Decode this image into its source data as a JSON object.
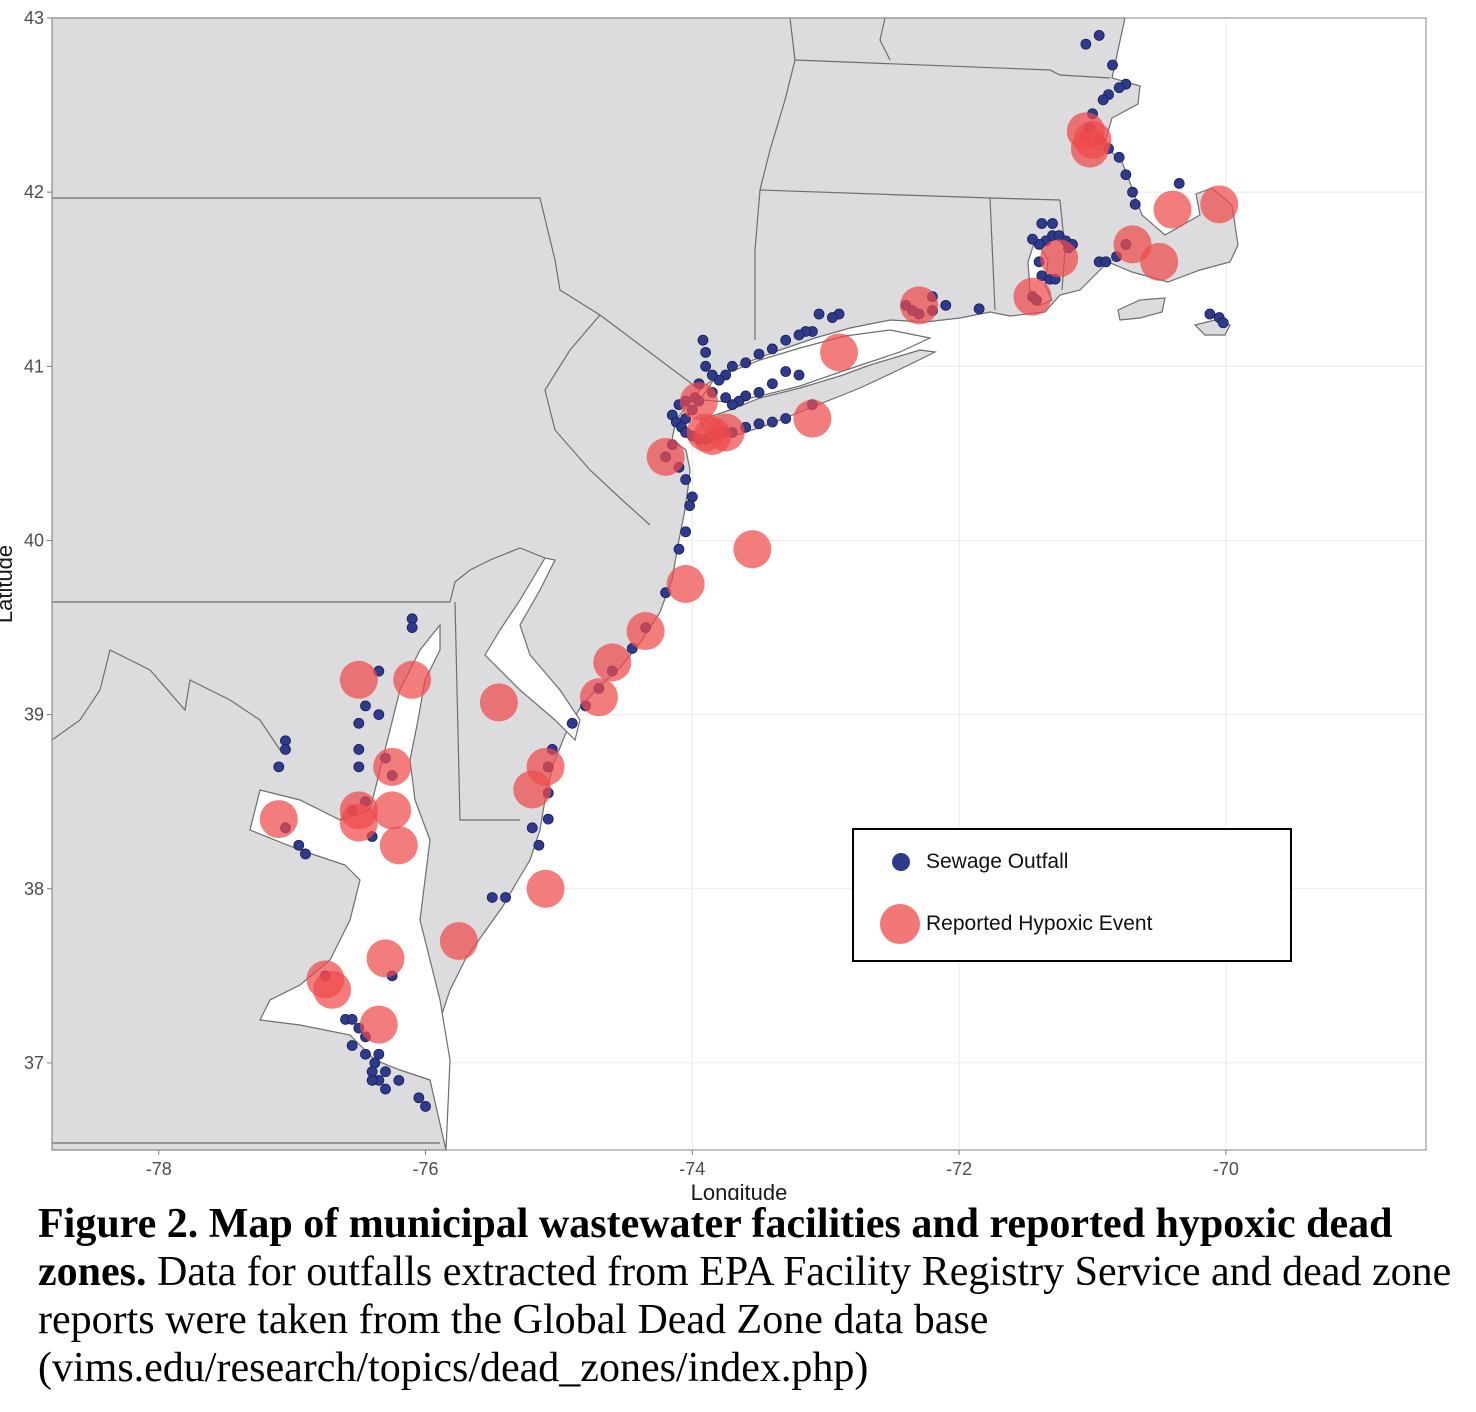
{
  "chart_data": {
    "type": "map",
    "xlabel": "Longitude",
    "ylabel": "Latitude",
    "xlim": [
      -78.8,
      -68.5
    ],
    "ylim": [
      36.5,
      43.0
    ],
    "x_ticks": [
      -78,
      -76,
      -74,
      -72,
      -70
    ],
    "y_ticks": [
      37,
      38,
      39,
      40,
      41,
      42,
      43
    ],
    "x_tick_labels": [
      "-78",
      "-76",
      "-74",
      "-72",
      "-70"
    ],
    "y_tick_labels": [
      "37",
      "38",
      "39",
      "40",
      "41",
      "42",
      "43"
    ],
    "grid": true,
    "legend_position": "lower-right",
    "colors": {
      "land": "#dcdcde",
      "border": "#6e6e6e",
      "outfall": "#2e3a8c",
      "hypoxic": "#ee4b4b"
    },
    "series": [
      {
        "name": "Sewage Outfall",
        "points": [
          [
            -71.05,
            42.85
          ],
          [
            -70.95,
            42.9
          ],
          [
            -70.85,
            42.73
          ],
          [
            -70.75,
            42.62
          ],
          [
            -70.8,
            42.6
          ],
          [
            -70.88,
            42.56
          ],
          [
            -70.92,
            42.53
          ],
          [
            -71.0,
            42.45
          ],
          [
            -71.02,
            42.37
          ],
          [
            -71.05,
            42.33
          ],
          [
            -70.95,
            42.3
          ],
          [
            -70.88,
            42.25
          ],
          [
            -70.8,
            42.2
          ],
          [
            -70.75,
            42.1
          ],
          [
            -70.7,
            42.0
          ],
          [
            -70.68,
            41.93
          ],
          [
            -70.35,
            42.05
          ],
          [
            -71.3,
            41.75
          ],
          [
            -71.35,
            41.72
          ],
          [
            -71.4,
            41.7
          ],
          [
            -71.45,
            41.73
          ],
          [
            -71.38,
            41.82
          ],
          [
            -71.3,
            41.82
          ],
          [
            -71.25,
            41.75
          ],
          [
            -71.2,
            41.72
          ],
          [
            -71.15,
            41.7
          ],
          [
            -71.18,
            41.68
          ],
          [
            -71.4,
            41.6
          ],
          [
            -71.38,
            41.52
          ],
          [
            -71.32,
            41.5
          ],
          [
            -71.28,
            41.5
          ],
          [
            -71.45,
            41.4
          ],
          [
            -71.42,
            41.38
          ],
          [
            -70.95,
            41.6
          ],
          [
            -70.9,
            41.6
          ],
          [
            -70.82,
            41.63
          ],
          [
            -70.75,
            41.7
          ],
          [
            -70.12,
            41.3
          ],
          [
            -70.05,
            41.28
          ],
          [
            -70.02,
            41.25
          ],
          [
            -72.1,
            41.35
          ],
          [
            -72.2,
            41.32
          ],
          [
            -72.3,
            41.3
          ],
          [
            -72.35,
            41.32
          ],
          [
            -72.4,
            41.35
          ],
          [
            -72.2,
            41.4
          ],
          [
            -71.85,
            41.33
          ],
          [
            -72.9,
            41.3
          ],
          [
            -72.95,
            41.28
          ],
          [
            -73.05,
            41.3
          ],
          [
            -73.1,
            41.2
          ],
          [
            -73.15,
            41.2
          ],
          [
            -73.2,
            41.18
          ],
          [
            -73.3,
            41.15
          ],
          [
            -73.4,
            41.1
          ],
          [
            -73.5,
            41.07
          ],
          [
            -73.6,
            41.02
          ],
          [
            -73.7,
            41.0
          ],
          [
            -73.75,
            40.95
          ],
          [
            -73.8,
            40.92
          ],
          [
            -73.85,
            40.95
          ],
          [
            -73.9,
            41.0
          ],
          [
            -73.9,
            41.08
          ],
          [
            -73.92,
            41.15
          ],
          [
            -73.95,
            40.9
          ],
          [
            -73.98,
            40.82
          ],
          [
            -74.05,
            40.8
          ],
          [
            -74.1,
            40.78
          ],
          [
            -74.15,
            40.72
          ],
          [
            -74.12,
            40.68
          ],
          [
            -74.08,
            40.65
          ],
          [
            -74.05,
            40.62
          ],
          [
            -74.0,
            40.6
          ],
          [
            -73.95,
            40.58
          ],
          [
            -73.9,
            40.58
          ],
          [
            -73.85,
            40.6
          ],
          [
            -73.8,
            40.62
          ],
          [
            -73.75,
            40.62
          ],
          [
            -73.7,
            40.62
          ],
          [
            -73.6,
            40.65
          ],
          [
            -73.5,
            40.67
          ],
          [
            -73.4,
            40.68
          ],
          [
            -73.3,
            40.7
          ],
          [
            -73.1,
            40.78
          ],
          [
            -73.2,
            40.95
          ],
          [
            -73.3,
            40.97
          ],
          [
            -73.4,
            40.9
          ],
          [
            -73.5,
            40.85
          ],
          [
            -73.6,
            40.83
          ],
          [
            -73.65,
            40.8
          ],
          [
            -73.7,
            40.78
          ],
          [
            -73.75,
            40.82
          ],
          [
            -73.85,
            40.85
          ],
          [
            -73.95,
            40.8
          ],
          [
            -74.0,
            40.75
          ],
          [
            -74.05,
            40.7
          ],
          [
            -74.15,
            40.55
          ],
          [
            -74.2,
            40.48
          ],
          [
            -74.1,
            40.42
          ],
          [
            -74.05,
            40.35
          ],
          [
            -74.0,
            40.25
          ],
          [
            -74.02,
            40.2
          ],
          [
            -74.05,
            40.05
          ],
          [
            -74.1,
            39.95
          ],
          [
            -74.2,
            39.7
          ],
          [
            -74.35,
            39.5
          ],
          [
            -74.45,
            39.38
          ],
          [
            -74.6,
            39.25
          ],
          [
            -74.7,
            39.15
          ],
          [
            -74.8,
            39.05
          ],
          [
            -74.9,
            38.95
          ],
          [
            -75.05,
            38.8
          ],
          [
            -75.08,
            38.7
          ],
          [
            -75.08,
            38.55
          ],
          [
            -75.08,
            38.4
          ],
          [
            -75.15,
            38.25
          ],
          [
            -75.2,
            38.35
          ],
          [
            -75.4,
            37.95
          ],
          [
            -75.5,
            37.95
          ],
          [
            -76.1,
            39.55
          ],
          [
            -76.1,
            39.5
          ],
          [
            -76.35,
            39.25
          ],
          [
            -76.45,
            39.05
          ],
          [
            -76.35,
            39.0
          ],
          [
            -76.5,
            38.95
          ],
          [
            -76.5,
            38.8
          ],
          [
            -76.5,
            38.7
          ],
          [
            -76.3,
            38.75
          ],
          [
            -76.25,
            38.65
          ],
          [
            -76.4,
            38.3
          ],
          [
            -76.45,
            38.5
          ],
          [
            -76.55,
            38.45
          ],
          [
            -77.05,
            38.85
          ],
          [
            -77.05,
            38.8
          ],
          [
            -77.1,
            38.7
          ],
          [
            -77.05,
            38.35
          ],
          [
            -76.95,
            38.25
          ],
          [
            -76.9,
            38.2
          ],
          [
            -76.25,
            37.5
          ],
          [
            -76.75,
            37.5
          ],
          [
            -76.6,
            37.25
          ],
          [
            -76.55,
            37.25
          ],
          [
            -76.5,
            37.2
          ],
          [
            -76.45,
            37.15
          ],
          [
            -76.55,
            37.1
          ],
          [
            -76.45,
            37.05
          ],
          [
            -76.35,
            37.05
          ],
          [
            -76.38,
            37.0
          ],
          [
            -76.4,
            36.95
          ],
          [
            -76.35,
            36.9
          ],
          [
            -76.3,
            36.85
          ],
          [
            -76.4,
            36.9
          ],
          [
            -76.2,
            36.9
          ],
          [
            -76.05,
            36.8
          ],
          [
            -76.0,
            36.75
          ],
          [
            -76.3,
            36.95
          ]
        ]
      },
      {
        "name": "Reported Hypoxic Event",
        "points": [
          [
            -71.05,
            42.35
          ],
          [
            -71.0,
            42.3
          ],
          [
            -71.02,
            42.25
          ],
          [
            -70.4,
            41.9
          ],
          [
            -70.05,
            41.93
          ],
          [
            -70.7,
            41.7
          ],
          [
            -70.5,
            41.6
          ],
          [
            -71.25,
            41.62
          ],
          [
            -71.45,
            41.4
          ],
          [
            -72.3,
            41.35
          ],
          [
            -72.9,
            41.08
          ],
          [
            -73.1,
            40.7
          ],
          [
            -73.95,
            40.8
          ],
          [
            -73.9,
            40.62
          ],
          [
            -73.75,
            40.62
          ],
          [
            -73.85,
            40.6
          ],
          [
            -74.2,
            40.48
          ],
          [
            -73.55,
            39.95
          ],
          [
            -74.05,
            39.75
          ],
          [
            -74.35,
            39.48
          ],
          [
            -74.6,
            39.3
          ],
          [
            -74.7,
            39.1
          ],
          [
            -75.45,
            39.07
          ],
          [
            -75.1,
            38.7
          ],
          [
            -75.2,
            38.57
          ],
          [
            -75.1,
            38.0
          ],
          [
            -75.75,
            37.7
          ],
          [
            -76.5,
            39.2
          ],
          [
            -76.1,
            39.2
          ],
          [
            -76.25,
            38.7
          ],
          [
            -76.5,
            38.45
          ],
          [
            -76.5,
            38.38
          ],
          [
            -76.25,
            38.45
          ],
          [
            -76.2,
            38.25
          ],
          [
            -77.1,
            38.4
          ],
          [
            -76.3,
            37.6
          ],
          [
            -76.75,
            37.48
          ],
          [
            -76.7,
            37.42
          ],
          [
            -76.35,
            37.22
          ]
        ]
      }
    ]
  },
  "legend": {
    "outfall_label": "Sewage Outfall",
    "hypoxic_label": "Reported Hypoxic Event"
  },
  "caption": {
    "bold": "Figure 2. Map of municipal wastewater facilities and reported hypoxic dead zones.",
    "text": "Data for outfalls extracted from EPA Facility Registry Service and dead zone reports were taken from the Global Dead Zone data base (vims.edu/research/topics/dead_zones/index.php)"
  }
}
